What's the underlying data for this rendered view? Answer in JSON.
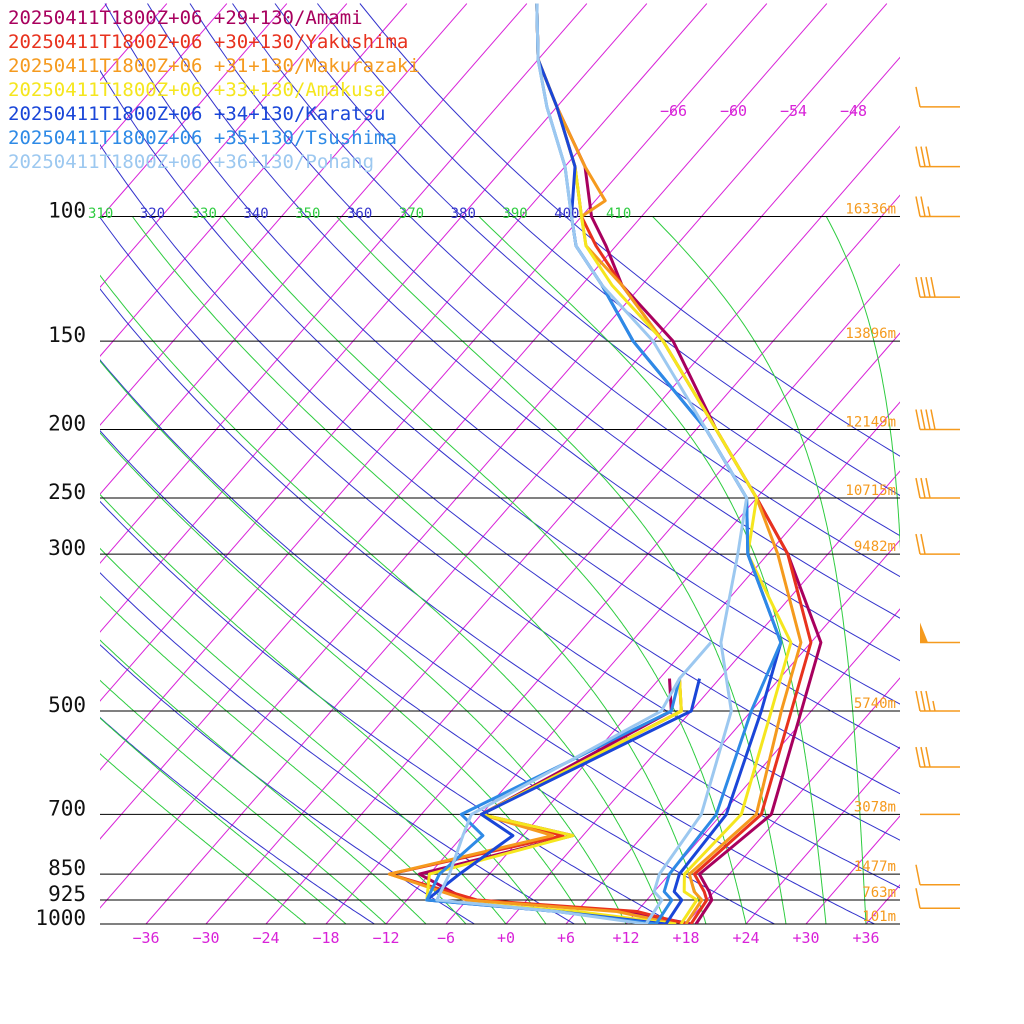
{
  "chart_data": {
    "type": "line",
    "subtype": "skew-t log-p sounding",
    "legend_position": "top-left",
    "series": [
      {
        "name": "20250411T1800Z+06 +29+130/Amami",
        "color": "#a8005e",
        "points": [
          [
            1000,
            19
          ],
          [
            925,
            18.5
          ],
          [
            900,
            17.5
          ],
          [
            850,
            15
          ],
          [
            700,
            17
          ],
          [
            500,
            11
          ],
          [
            400,
            7
          ],
          [
            300,
            -4
          ],
          [
            250,
            -12
          ],
          [
            200,
            -22
          ],
          [
            150,
            -34
          ],
          [
            125,
            -44
          ],
          [
            110,
            -49
          ],
          [
            100,
            -53
          ],
          [
            85,
            -58
          ],
          [
            70,
            -66
          ],
          [
            60,
            -72
          ],
          [
            50,
            -77
          ]
        ],
        "dew_points": [
          [
            1000,
            18.5
          ],
          [
            960,
            11
          ],
          [
            925,
            -6
          ],
          [
            850,
            -13
          ],
          [
            750,
            -1
          ],
          [
            700,
            -12
          ],
          [
            500,
            -2
          ],
          [
            450,
            -5
          ]
        ]
      },
      {
        "name": "20250411T1800Z+06 +30+130/Yakushima",
        "color": "#e8321e",
        "points": [
          [
            1000,
            18.5
          ],
          [
            925,
            18
          ],
          [
            900,
            17
          ],
          [
            850,
            14.5
          ],
          [
            700,
            16
          ],
          [
            500,
            10
          ],
          [
            400,
            6
          ],
          [
            300,
            -4
          ],
          [
            250,
            -12
          ],
          [
            200,
            -22
          ],
          [
            150,
            -35
          ],
          [
            125,
            -44
          ],
          [
            110,
            -50
          ],
          [
            100,
            -54
          ],
          [
            85,
            -59
          ],
          [
            70,
            -66
          ],
          [
            60,
            -72
          ],
          [
            50,
            -77
          ]
        ],
        "dew_points": [
          [
            1000,
            18
          ],
          [
            960,
            12
          ],
          [
            925,
            -5
          ],
          [
            850,
            -16
          ],
          [
            750,
            -2
          ],
          [
            700,
            -12
          ],
          [
            500,
            -1
          ],
          [
            450,
            -4
          ]
        ]
      },
      {
        "name": "20250411T1800Z+06 +31+130/Makurazaki",
        "color": "#f59a1e",
        "points": [
          [
            1000,
            18
          ],
          [
            925,
            17.5
          ],
          [
            900,
            16
          ],
          [
            850,
            14
          ],
          [
            700,
            15.5
          ],
          [
            500,
            9
          ],
          [
            400,
            5
          ],
          [
            300,
            -5
          ],
          [
            250,
            -12
          ],
          [
            200,
            -22
          ],
          [
            150,
            -35
          ],
          [
            125,
            -44
          ],
          [
            110,
            -51
          ],
          [
            100,
            -54
          ],
          [
            95,
            -53
          ],
          [
            85,
            -58
          ],
          [
            70,
            -66
          ],
          [
            60,
            -72
          ],
          [
            50,
            -77
          ]
        ],
        "dew_points": [
          [
            1000,
            17
          ],
          [
            960,
            10
          ],
          [
            925,
            -6
          ],
          [
            850,
            -16
          ],
          [
            750,
            -3
          ],
          [
            700,
            -12
          ],
          [
            500,
            -1
          ],
          [
            450,
            -4
          ]
        ]
      },
      {
        "name": "20250411T1800Z+06 +33+130/Amakusa",
        "color": "#f5e61e",
        "points": [
          [
            1000,
            17.5
          ],
          [
            925,
            17
          ],
          [
            900,
            15
          ],
          [
            850,
            13.5
          ],
          [
            700,
            14
          ],
          [
            500,
            8
          ],
          [
            400,
            4
          ],
          [
            300,
            -8
          ],
          [
            250,
            -12
          ],
          [
            200,
            -22
          ],
          [
            150,
            -35
          ],
          [
            125,
            -45
          ],
          [
            110,
            -51
          ],
          [
            100,
            -54
          ],
          [
            85,
            -59
          ],
          [
            70,
            -66
          ],
          [
            60,
            -72
          ],
          [
            50,
            -77
          ]
        ],
        "dew_points": [
          [
            1000,
            17
          ],
          [
            960,
            6
          ],
          [
            925,
            -10
          ],
          [
            850,
            -12
          ],
          [
            750,
            -1
          ],
          [
            700,
            -12
          ],
          [
            500,
            -1
          ],
          [
            450,
            -4
          ]
        ]
      },
      {
        "name": "20250411T1800Z+06 +34+130/Karatsu",
        "color": "#1a46d8",
        "points": [
          [
            1000,
            16
          ],
          [
            925,
            15.5
          ],
          [
            900,
            14
          ],
          [
            850,
            13
          ],
          [
            700,
            12.5
          ],
          [
            500,
            7
          ],
          [
            400,
            3
          ],
          [
            300,
            -8
          ],
          [
            250,
            -13
          ],
          [
            200,
            -23
          ],
          [
            150,
            -38
          ],
          [
            125,
            -46
          ],
          [
            110,
            -52
          ],
          [
            100,
            -55
          ],
          [
            85,
            -59
          ],
          [
            70,
            -66
          ],
          [
            60,
            -72
          ],
          [
            50,
            -77
          ]
        ],
        "dew_points": [
          [
            1000,
            16
          ],
          [
            960,
            4
          ],
          [
            925,
            -10
          ],
          [
            850,
            -9
          ],
          [
            750,
            -7
          ],
          [
            700,
            -12
          ],
          [
            500,
            0
          ],
          [
            450,
            -2
          ]
        ]
      },
      {
        "name": "20250411T1800Z+06 +35+130/Tsushima",
        "color": "#2e8ae6",
        "points": [
          [
            1000,
            15
          ],
          [
            925,
            14.5
          ],
          [
            900,
            13
          ],
          [
            850,
            12
          ],
          [
            700,
            11.5
          ],
          [
            500,
            6
          ],
          [
            400,
            3
          ],
          [
            300,
            -8
          ],
          [
            250,
            -13
          ],
          [
            200,
            -23
          ],
          [
            150,
            -38
          ],
          [
            125,
            -46
          ],
          [
            110,
            -52
          ],
          [
            100,
            -55
          ],
          [
            85,
            -60
          ],
          [
            70,
            -67
          ],
          [
            60,
            -72
          ],
          [
            50,
            -77
          ]
        ],
        "dew_points": [
          [
            1000,
            15
          ],
          [
            960,
            4
          ],
          [
            925,
            -10
          ],
          [
            850,
            -11
          ],
          [
            750,
            -10
          ],
          [
            700,
            -14
          ],
          [
            500,
            -2
          ],
          [
            450,
            -4
          ]
        ]
      },
      {
        "name": "20250411T1800Z+06 +36+130/Pohang",
        "color": "#9cc8f0",
        "points": [
          [
            1000,
            14
          ],
          [
            925,
            13.5
          ],
          [
            900,
            12
          ],
          [
            850,
            11
          ],
          [
            700,
            10
          ],
          [
            500,
            4
          ],
          [
            400,
            -3
          ],
          [
            300,
            -9
          ],
          [
            250,
            -13
          ],
          [
            200,
            -23
          ],
          [
            150,
            -36
          ],
          [
            125,
            -46
          ],
          [
            110,
            -52
          ],
          [
            100,
            -55
          ],
          [
            85,
            -60
          ],
          [
            70,
            -67
          ],
          [
            60,
            -72
          ],
          [
            50,
            -77
          ]
        ],
        "dew_points": [
          [
            1000,
            14
          ],
          [
            960,
            4
          ],
          [
            925,
            -9
          ],
          [
            850,
            -10
          ],
          [
            750,
            -12
          ],
          [
            700,
            -13
          ],
          [
            500,
            -3
          ],
          [
            450,
            -4
          ],
          [
            400,
            -4
          ]
        ]
      }
    ],
    "pressure_levels": [
      {
        "label": "100",
        "p": 100,
        "height": "16336m"
      },
      {
        "label": "150",
        "p": 150,
        "height": "13896m"
      },
      {
        "label": "200",
        "p": 200,
        "height": "12149m"
      },
      {
        "label": "250",
        "p": 250,
        "height": "10715m"
      },
      {
        "label": "300",
        "p": 300,
        "height": "9482m"
      },
      {
        "label": "500",
        "p": 500,
        "height": "5740m"
      },
      {
        "label": "700",
        "p": 700,
        "height": "3078m"
      },
      {
        "label": "850",
        "p": 850,
        "height": "1477m"
      },
      {
        "label": "925",
        "p": 925,
        "height": "763m"
      },
      {
        "label": "1000",
        "p": 1000,
        "height": "101m"
      }
    ],
    "temperature_ticks": [
      "−36",
      "−30",
      "−24",
      "−18",
      "−12",
      "−6",
      "+0",
      "+6",
      "+12",
      "+18",
      "+24",
      "+30",
      "+36"
    ],
    "temperature_tick_values": [
      -36,
      -30,
      -24,
      -18,
      -12,
      -6,
      0,
      6,
      12,
      18,
      24,
      30,
      36
    ],
    "upper_temperature_labels": [
      "−66",
      "−60",
      "−54",
      "−48"
    ],
    "upper_temperature_values": [
      -66,
      -60,
      -54,
      -48
    ],
    "theta_labels": [
      {
        "label": "310",
        "value": 310,
        "color": "#2ecc40"
      },
      {
        "label": "320",
        "value": 320,
        "color": "#3333cc"
      },
      {
        "label": "330",
        "value": 330,
        "color": "#2ecc40"
      },
      {
        "label": "340",
        "value": 340,
        "color": "#3333cc"
      },
      {
        "label": "350",
        "value": 350,
        "color": "#2ecc40"
      },
      {
        "label": "360",
        "value": 360,
        "color": "#3333cc"
      },
      {
        "label": "370",
        "value": 370,
        "color": "#2ecc40"
      },
      {
        "label": "380",
        "value": 380,
        "color": "#3333cc"
      },
      {
        "label": "390",
        "value": 390,
        "color": "#2ecc40"
      },
      {
        "label": "400",
        "value": 400,
        "color": "#3333cc"
      },
      {
        "label": "410",
        "value": 410,
        "color": "#2ecc40"
      }
    ],
    "wind_barbs": [
      {
        "p": 70,
        "speed_kt": 10
      },
      {
        "p": 85,
        "speed_kt": 30
      },
      {
        "p": 100,
        "speed_kt": 25
      },
      {
        "p": 130,
        "speed_kt": 40
      },
      {
        "p": 200,
        "speed_kt": 40
      },
      {
        "p": 250,
        "speed_kt": 30
      },
      {
        "p": 300,
        "speed_kt": 20
      },
      {
        "p": 400,
        "speed_kt": 50
      },
      {
        "p": 500,
        "speed_kt": 35
      },
      {
        "p": 600,
        "speed_kt": 30
      },
      {
        "p": 700,
        "speed_kt": 0
      },
      {
        "p": 880,
        "speed_kt": 10
      },
      {
        "p": 950,
        "speed_kt": 10
      }
    ],
    "colors": {
      "isotherm": "#d822d8",
      "dry_adiabat": "#3333cc",
      "moist_adiabat": "#2ecc40",
      "isobar": "#000000",
      "height_label": "#f59a1e",
      "wind_barb": "#f59a1e"
    }
  }
}
